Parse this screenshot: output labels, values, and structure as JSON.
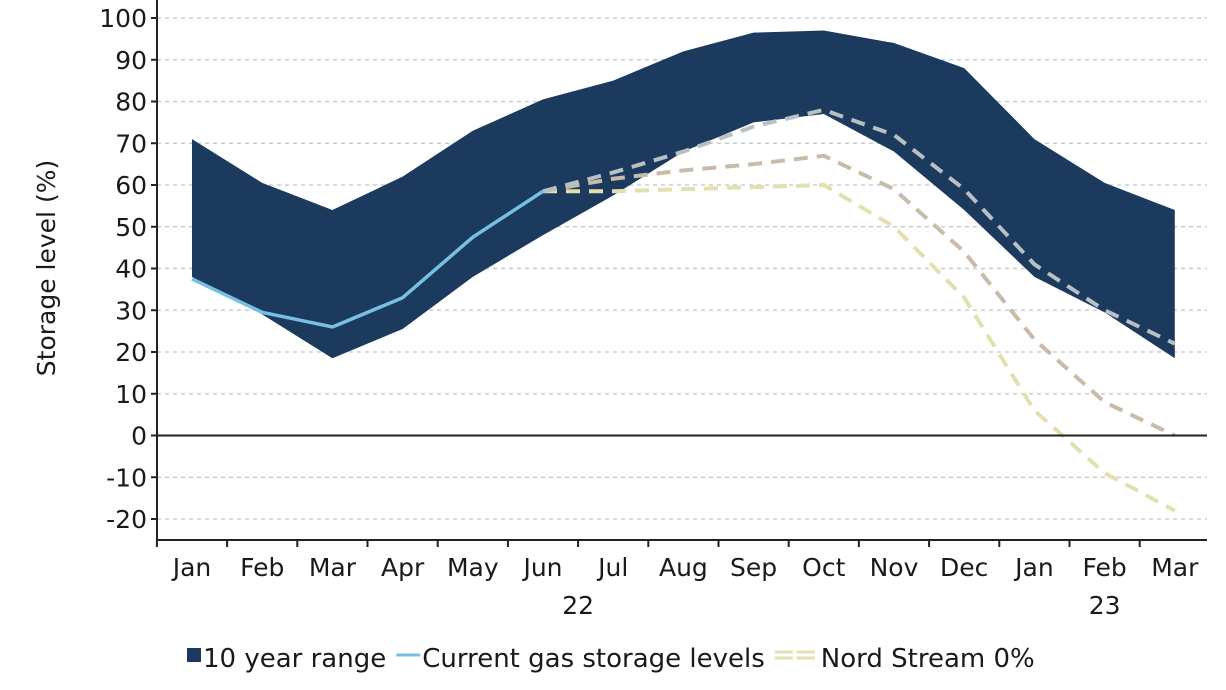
{
  "chart_data": {
    "type": "area",
    "ylabel": "Storage level (%)",
    "xlabel": "",
    "ylim": [
      -20,
      100
    ],
    "yticks": [
      -20,
      -10,
      0,
      10,
      20,
      30,
      40,
      50,
      60,
      70,
      80,
      90,
      100
    ],
    "categories": [
      "Jan",
      "Feb",
      "Mar",
      "Apr",
      "May",
      "Jun",
      "Jul",
      "Aug",
      "Sep",
      "Oct",
      "Nov",
      "Dec",
      "Jan",
      "Feb",
      "Mar"
    ],
    "year_labels": [
      {
        "text": "22",
        "category_index": 5.5
      },
      {
        "text": "23",
        "category_index": 13
      }
    ],
    "grid": true,
    "legend_position": "bottom",
    "colors": {
      "range": "#1b3a5e",
      "current": "#78bfe4",
      "ns0": "#e3dfae",
      "ns40": "#c8bba9",
      "ns100": "#b8c0c3",
      "grid": "#c6cdd2",
      "axis": "#222222"
    },
    "series": [
      {
        "name": "10 year range",
        "kind": "band",
        "upper": [
          71,
          60.5,
          54,
          62,
          73,
          80.5,
          85,
          92,
          96.5,
          97,
          94,
          88,
          71,
          60.5,
          54
        ],
        "lower": [
          38,
          29,
          18.5,
          25.5,
          38,
          48,
          57.5,
          68,
          75,
          77,
          68,
          54,
          38,
          29.5,
          18.5
        ]
      },
      {
        "name": "Current gas storage levels",
        "kind": "line",
        "x": [
          0,
          1,
          2,
          3,
          4,
          5
        ],
        "values": [
          37.5,
          29.5,
          26,
          33,
          47.5,
          58.5
        ]
      },
      {
        "name": "Nord Stream 0%",
        "kind": "dashed",
        "x": [
          5,
          6,
          7,
          8,
          9,
          10,
          11,
          12,
          13,
          14
        ],
        "values": [
          58.5,
          58.5,
          59,
          59.5,
          60,
          50,
          33,
          6,
          -9,
          -18
        ]
      },
      {
        "name": "",
        "kind": "dashed",
        "x": [
          5,
          6,
          7,
          8,
          9,
          10,
          11,
          12,
          13,
          14
        ],
        "values": [
          58.5,
          61.5,
          63.5,
          65,
          67,
          59,
          44,
          23,
          8,
          0
        ]
      },
      {
        "name": "",
        "kind": "dashed",
        "x": [
          5,
          6,
          7,
          8,
          9,
          10,
          11,
          12,
          13,
          14
        ],
        "values": [
          58.5,
          63,
          68,
          74,
          78,
          72,
          59,
          41,
          30,
          22
        ]
      }
    ]
  }
}
